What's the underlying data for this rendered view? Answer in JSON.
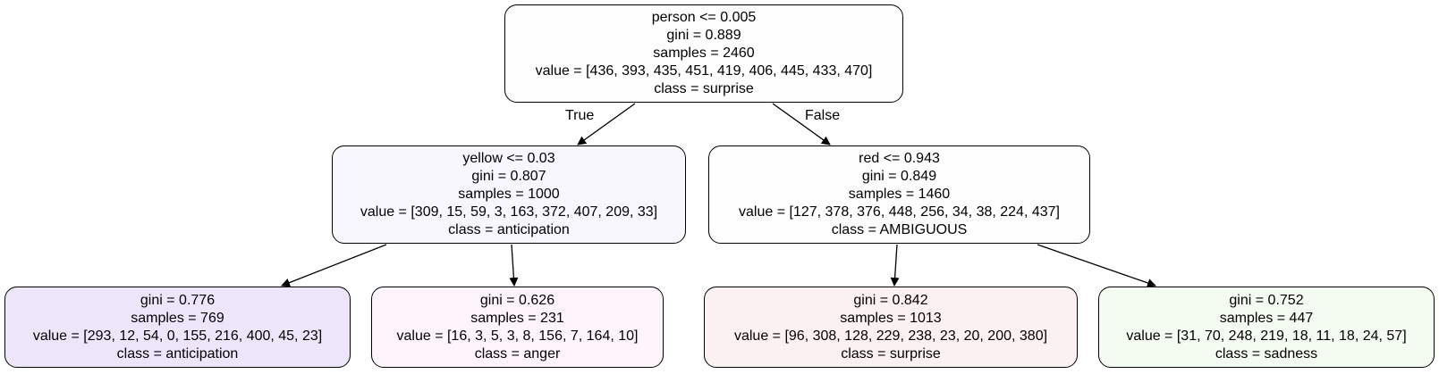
{
  "tree": {
    "nodes": [
      {
        "id": "root",
        "lines": [
          "person <= 0.005",
          "gini = 0.889",
          "samples = 2460",
          "value = [436, 393, 435, 451, 419, 406, 445, 433, 470]",
          "class = surprise"
        ],
        "fill": "#fffeff"
      },
      {
        "id": "left",
        "lines": [
          "yellow <= 0.03",
          "gini = 0.807",
          "samples = 1000",
          "value = [309, 15, 59, 3, 163, 372, 407, 209, 33]",
          "class = anticipation"
        ],
        "fill": "#f8f7fe"
      },
      {
        "id": "right",
        "lines": [
          "red <= 0.943",
          "gini = 0.849",
          "samples = 1460",
          "value = [127, 378, 376, 448, 256, 34, 38, 224, 437]",
          "class = AMBIGUOUS"
        ],
        "fill": "#fffeff"
      },
      {
        "id": "left-left",
        "lines": [
          "gini = 0.776",
          "samples = 769",
          "value = [293, 12, 54, 0, 155, 216, 400, 45, 23]",
          "class = anticipation"
        ],
        "fill": "#ede6fb"
      },
      {
        "id": "left-right",
        "lines": [
          "gini = 0.626",
          "samples = 231",
          "value = [16, 3, 5, 3, 8, 156, 7, 164, 10]",
          "class = anger"
        ],
        "fill": "#fdf5fb"
      },
      {
        "id": "right-left",
        "lines": [
          "gini = 0.842",
          "samples = 1013",
          "value = [96, 308, 128, 229, 238, 23, 20, 200, 380]",
          "class = surprise"
        ],
        "fill": "#fcf1f1"
      },
      {
        "id": "right-right",
        "lines": [
          "gini = 0.752",
          "samples = 447",
          "value = [31, 70, 248, 219, 18, 11, 18, 24, 57]",
          "class = sadness"
        ],
        "fill": "#f4fbf1"
      }
    ],
    "edges": [
      {
        "from": "root",
        "to": "left",
        "label": "True"
      },
      {
        "from": "root",
        "to": "right",
        "label": "False"
      },
      {
        "from": "left",
        "to": "left-left",
        "label": ""
      },
      {
        "from": "left",
        "to": "left-right",
        "label": ""
      },
      {
        "from": "right",
        "to": "right-left",
        "label": ""
      },
      {
        "from": "right",
        "to": "right-right",
        "label": ""
      }
    ]
  }
}
